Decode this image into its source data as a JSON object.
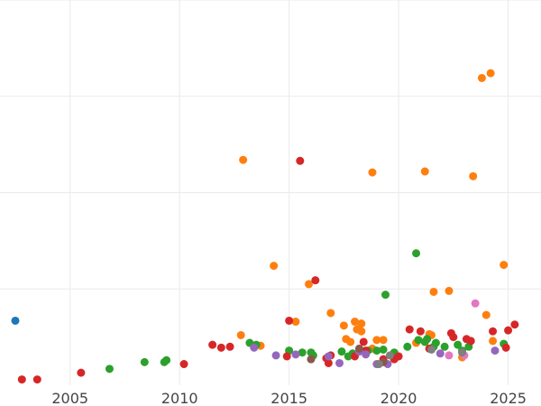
{
  "chart_data": {
    "type": "scatter",
    "title": "",
    "xlabel": "",
    "ylabel": "",
    "xlim": [
      2001.8,
      2026.5
    ],
    "ylim": [
      0,
      4
    ],
    "xticks": [
      2005,
      2010,
      2015,
      2020,
      2025
    ],
    "xtick_labels": [
      "2005",
      "2010",
      "2015",
      "2020",
      "2025"
    ],
    "yticks": [
      1,
      2,
      3,
      4
    ],
    "grid": true,
    "legend": "none",
    "series": [
      {
        "color": "#1f77b4",
        "x": [
          2002.5
        ],
        "y": [
          0.67
        ]
      },
      {
        "color": "#ff7f0e",
        "x": [
          2012.8,
          2012.9,
          2013.7,
          2014.3,
          2015.3,
          2015.9,
          2016.9,
          2017.5,
          2017.6,
          2017.8,
          2018.0,
          2018.1,
          2018.3,
          2018.3,
          2018.8,
          2018.8,
          2019.0,
          2019.3,
          2020.8,
          2021.2,
          2021.4,
          2021.5,
          2021.6,
          2022.3,
          2022.9,
          2023.4,
          2023.8,
          2024.0,
          2024.2,
          2024.3,
          2024.8
        ],
        "y": [
          0.52,
          2.34,
          0.41,
          1.24,
          0.66,
          1.05,
          0.75,
          0.62,
          0.48,
          0.45,
          0.66,
          0.58,
          0.56,
          0.64,
          0.38,
          2.21,
          0.47,
          0.47,
          0.44,
          2.22,
          0.53,
          0.52,
          0.97,
          0.98,
          0.29,
          2.17,
          3.19,
          0.73,
          3.24,
          0.46,
          1.25
        ]
      },
      {
        "color": "#2ca02c",
        "x": [
          2006.8,
          2008.4,
          2009.3,
          2009.4,
          2013.2,
          2013.5,
          2015.0,
          2015.6,
          2016.0,
          2016.1,
          2017.4,
          2017.7,
          2017.9,
          2018.6,
          2019.0,
          2019.3,
          2019.4,
          2019.8,
          2020.4,
          2020.8,
          2020.9,
          2021.2,
          2021.3,
          2021.6,
          2021.7,
          2022.1,
          2022.7,
          2022.9,
          2023.2,
          2024.8
        ],
        "y": [
          0.17,
          0.24,
          0.24,
          0.26,
          0.44,
          0.42,
          0.36,
          0.34,
          0.34,
          0.31,
          0.35,
          0.3,
          0.33,
          0.36,
          0.36,
          0.37,
          0.94,
          0.34,
          0.4,
          1.37,
          0.47,
          0.45,
          0.48,
          0.4,
          0.44,
          0.4,
          0.42,
          0.36,
          0.4,
          0.43
        ]
      },
      {
        "color": "#d62728",
        "x": [
          2002.8,
          2003.5,
          2005.5,
          2010.2,
          2011.5,
          2011.9,
          2012.3,
          2014.9,
          2015.0,
          2015.5,
          2016.2,
          2016.7,
          2016.8,
          2016.9,
          2018.0,
          2018.4,
          2018.5,
          2019.3,
          2019.8,
          2020.0,
          2020.5,
          2021.0,
          2021.4,
          2022.4,
          2022.5,
          2023.1,
          2023.3,
          2024.3,
          2024.9,
          2025.0,
          2025.3
        ],
        "y": [
          0.06,
          0.06,
          0.13,
          0.22,
          0.42,
          0.39,
          0.4,
          0.3,
          0.67,
          2.33,
          1.09,
          0.28,
          0.23,
          0.31,
          0.3,
          0.45,
          0.36,
          0.27,
          0.27,
          0.3,
          0.58,
          0.56,
          0.38,
          0.54,
          0.5,
          0.48,
          0.46,
          0.56,
          0.39,
          0.57,
          0.63
        ]
      },
      {
        "color": "#9467bd",
        "x": [
          2013.4,
          2014.4,
          2015.3,
          2016.8,
          2017.3,
          2018.2,
          2018.5,
          2019.0,
          2019.5,
          2021.9,
          2024.4
        ],
        "y": [
          0.39,
          0.31,
          0.32,
          0.3,
          0.23,
          0.35,
          0.32,
          0.22,
          0.22,
          0.33,
          0.36
        ]
      },
      {
        "color": "#8c564b",
        "x": [
          2016.0,
          2018.2,
          2019.3
        ],
        "y": [
          0.27,
          0.38,
          0.24
        ]
      },
      {
        "color": "#e377c2",
        "x": [
          2022.3,
          2023.0,
          2023.5
        ],
        "y": [
          0.31,
          0.31,
          0.85
        ]
      },
      {
        "color": "#7f7f7f",
        "x": [
          2019.1,
          2019.6,
          2021.5,
          2022.9
        ],
        "y": [
          0.22,
          0.31,
          0.37,
          0.34
        ]
      }
    ]
  }
}
